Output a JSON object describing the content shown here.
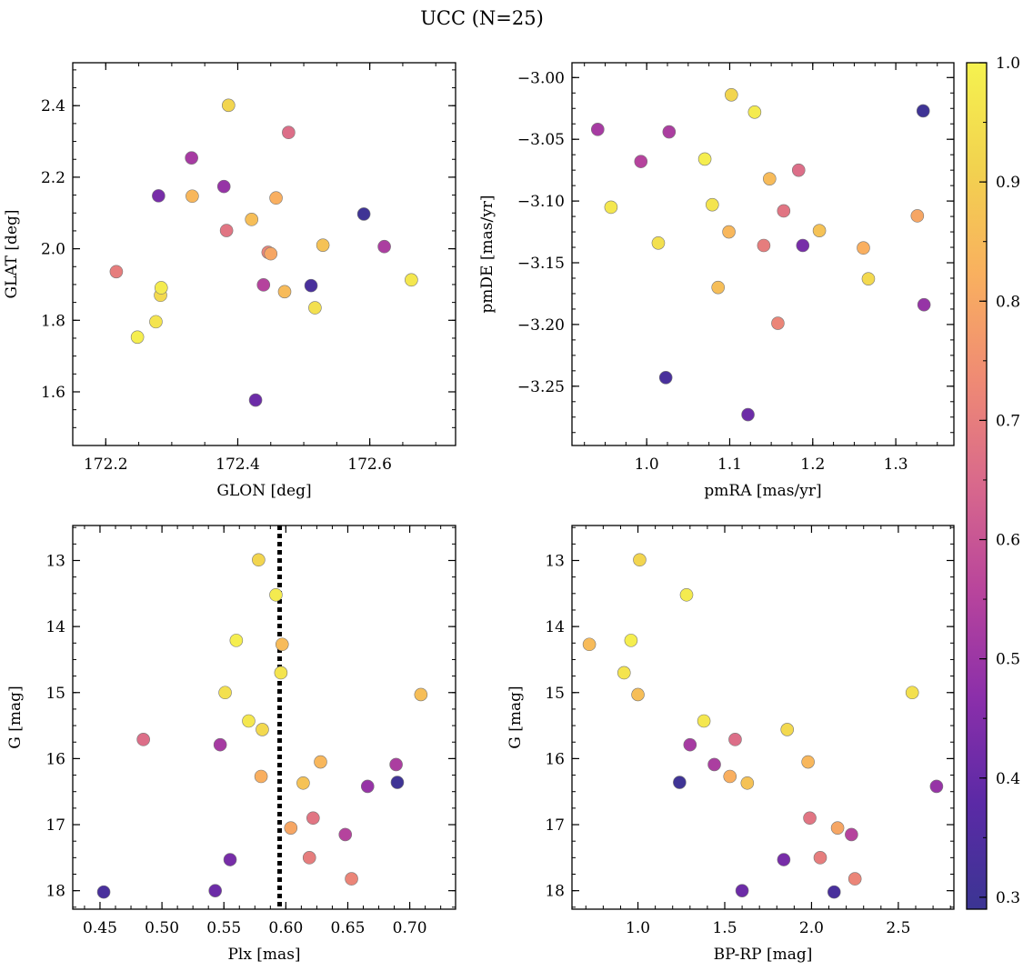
{
  "chart_data": {
    "type": "scatter",
    "title": "UCC (N=25)",
    "colorbar": {
      "colormap": "plasma",
      "min": 0.29,
      "max": 1.0,
      "ticks": [
        0.3,
        0.4,
        0.5,
        0.6,
        0.7,
        0.8,
        0.9,
        1.0
      ],
      "tick_labels": [
        "0.3",
        "0.4",
        "0.5",
        "0.6",
        "0.7",
        "0.8",
        "0.9",
        "1.0"
      ]
    },
    "colors": {
      "marker_edge": "#777777",
      "vline": "#000000",
      "colormap_stops": [
        "#3b3593",
        "#5b2aa6",
        "#8b2faa",
        "#b8449c",
        "#d8688c",
        "#ef8a74",
        "#f9b05f",
        "#f2d24f",
        "#f5f24f"
      ]
    },
    "panels": [
      {
        "xlabel": "GLON [deg]",
        "ylabel": "GLAT [deg]",
        "xlim": [
          172.15,
          172.73
        ],
        "ylim": [
          1.45,
          2.52
        ],
        "invert_y": false,
        "xticks": [
          172.2,
          172.4,
          172.6
        ],
        "xtick_labels": [
          "172.2",
          "172.4",
          "172.6"
        ],
        "yticks": [
          1.6,
          1.8,
          2.0,
          2.2,
          2.4
        ],
        "ytick_labels": [
          "1.6",
          "1.8",
          "2.0",
          "2.2",
          "2.4"
        ],
        "x_minor": 0.05,
        "y_minor": 0.05
      },
      {
        "xlabel": "pmRA [mas/yr]",
        "ylabel": "pmDE [mas/yr]",
        "xlim": [
          0.91,
          1.37
        ],
        "ylim": [
          -3.298,
          -2.988
        ],
        "invert_y": false,
        "xticks": [
          1.0,
          1.1,
          1.2,
          1.3
        ],
        "xtick_labels": [
          "1.0",
          "1.1",
          "1.2",
          "1.3"
        ],
        "yticks": [
          -3.25,
          -3.2,
          -3.15,
          -3.1,
          -3.05,
          -3.0
        ],
        "ytick_labels": [
          "−3.25",
          "−3.20",
          "−3.15",
          "−3.10",
          "−3.05",
          "−3.00"
        ],
        "x_minor": 0.025,
        "y_minor": 0.0125
      },
      {
        "xlabel": "Plx [mas]",
        "ylabel": "G [mag]",
        "xlim": [
          0.428,
          0.737
        ],
        "ylim": [
          12.47,
          18.28
        ],
        "invert_y": true,
        "xticks": [
          0.45,
          0.5,
          0.55,
          0.6,
          0.65,
          0.7
        ],
        "xtick_labels": [
          "0.45",
          "0.50",
          "0.55",
          "0.60",
          "0.65",
          "0.70"
        ],
        "yticks": [
          13,
          14,
          15,
          16,
          17,
          18
        ],
        "ytick_labels": [
          "13",
          "14",
          "15",
          "16",
          "17",
          "18"
        ],
        "x_minor": 0.0125,
        "y_minor": 0.25,
        "vline": 0.595
      },
      {
        "xlabel": "BP-RP [mag]",
        "ylabel": "G [mag]",
        "xlim": [
          0.62,
          2.82
        ],
        "ylim": [
          12.47,
          18.28
        ],
        "invert_y": true,
        "xticks": [
          1.0,
          1.5,
          2.0,
          2.5
        ],
        "xtick_labels": [
          "1.0",
          "1.5",
          "2.0",
          "2.5"
        ],
        "yticks": [
          13,
          14,
          15,
          16,
          17,
          18
        ],
        "ytick_labels": [
          "13",
          "14",
          "15",
          "16",
          "17",
          "18"
        ],
        "x_minor": 0.1,
        "y_minor": 0.25
      }
    ],
    "stars": [
      {
        "glon": 172.386,
        "glat": 2.401,
        "pmra": 1.102,
        "pmde": -3.014,
        "plx": 0.578,
        "g": 12.99,
        "bprp": 1.01,
        "p": 0.92
      },
      {
        "glon": 172.284,
        "glat": 1.891,
        "pmra": 1.13,
        "pmde": -3.028,
        "plx": 0.592,
        "g": 13.52,
        "bprp": 1.28,
        "p": 0.98
      },
      {
        "glon": 172.248,
        "glat": 1.753,
        "pmra": 1.07,
        "pmde": -3.066,
        "plx": 0.56,
        "g": 14.21,
        "bprp": 0.96,
        "p": 0.99
      },
      {
        "glon": 172.471,
        "glat": 1.88,
        "pmra": 1.148,
        "pmde": -3.082,
        "plx": 0.597,
        "g": 14.27,
        "bprp": 0.72,
        "p": 0.85
      },
      {
        "glon": 172.276,
        "glat": 1.796,
        "pmra": 1.079,
        "pmde": -3.103,
        "plx": 0.596,
        "g": 14.7,
        "bprp": 0.92,
        "p": 0.96
      },
      {
        "glon": 172.517,
        "glat": 1.835,
        "pmra": 1.014,
        "pmde": -3.134,
        "plx": 0.551,
        "g": 15.0,
        "bprp": 2.58,
        "p": 0.95
      },
      {
        "glon": 172.421,
        "glat": 2.082,
        "pmra": 1.086,
        "pmde": -3.17,
        "plx": 0.709,
        "g": 15.03,
        "bprp": 1.0,
        "p": 0.86
      },
      {
        "glon": 172.663,
        "glat": 1.913,
        "pmra": 0.957,
        "pmde": -3.105,
        "plx": 0.57,
        "g": 15.43,
        "bprp": 1.38,
        "p": 0.97
      },
      {
        "glon": 172.283,
        "glat": 1.87,
        "pmra": 1.267,
        "pmde": -3.163,
        "plx": 0.581,
        "g": 15.56,
        "bprp": 1.86,
        "p": 0.93
      },
      {
        "glon": 172.477,
        "glat": 2.325,
        "pmra": 1.183,
        "pmde": -3.075,
        "plx": 0.485,
        "g": 15.71,
        "bprp": 1.56,
        "p": 0.66
      },
      {
        "glon": 172.33,
        "glat": 2.254,
        "pmra": 0.941,
        "pmde": -3.042,
        "plx": 0.547,
        "g": 15.79,
        "bprp": 1.3,
        "p": 0.52
      },
      {
        "glon": 172.331,
        "glat": 2.147,
        "pmra": 1.099,
        "pmde": -3.125,
        "plx": 0.628,
        "g": 16.05,
        "bprp": 1.98,
        "p": 0.84
      },
      {
        "glon": 172.622,
        "glat": 2.006,
        "pmra": 1.027,
        "pmde": -3.044,
        "plx": 0.689,
        "g": 16.09,
        "bprp": 1.44,
        "p": 0.53
      },
      {
        "glon": 172.458,
        "glat": 2.142,
        "pmra": 1.261,
        "pmde": -3.138,
        "plx": 0.58,
        "g": 16.27,
        "bprp": 1.53,
        "p": 0.82
      },
      {
        "glon": 172.591,
        "glat": 2.097,
        "pmra": 1.333,
        "pmde": -3.027,
        "plx": 0.69,
        "g": 16.36,
        "bprp": 1.24,
        "p": 0.3
      },
      {
        "glon": 172.529,
        "glat": 2.01,
        "pmra": 1.208,
        "pmde": -3.124,
        "plx": 0.614,
        "g": 16.37,
        "bprp": 1.63,
        "p": 0.87
      },
      {
        "glon": 172.379,
        "glat": 2.174,
        "pmra": 1.334,
        "pmde": -3.184,
        "plx": 0.666,
        "g": 16.42,
        "bprp": 2.72,
        "p": 0.49
      },
      {
        "glon": 172.383,
        "glat": 2.051,
        "pmra": 1.165,
        "pmde": -3.108,
        "plx": 0.622,
        "g": 16.9,
        "bprp": 1.99,
        "p": 0.68
      },
      {
        "glon": 172.45,
        "glat": 1.986,
        "pmra": 1.326,
        "pmde": -3.112,
        "plx": 0.604,
        "g": 17.05,
        "bprp": 2.15,
        "p": 0.8
      },
      {
        "glon": 172.439,
        "glat": 1.899,
        "pmra": 0.993,
        "pmde": -3.068,
        "plx": 0.648,
        "g": 17.15,
        "bprp": 2.23,
        "p": 0.55
      },
      {
        "glon": 172.216,
        "glat": 1.936,
        "pmra": 1.141,
        "pmde": -3.136,
        "plx": 0.619,
        "g": 17.5,
        "bprp": 2.05,
        "p": 0.7
      },
      {
        "glon": 172.28,
        "glat": 2.148,
        "pmra": 1.188,
        "pmde": -3.136,
        "plx": 0.555,
        "g": 17.53,
        "bprp": 1.84,
        "p": 0.43
      },
      {
        "glon": 172.446,
        "glat": 1.99,
        "pmra": 1.158,
        "pmde": -3.199,
        "plx": 0.653,
        "g": 17.82,
        "bprp": 2.25,
        "p": 0.72
      },
      {
        "glon": 172.427,
        "glat": 1.577,
        "pmra": 1.122,
        "pmde": -3.273,
        "plx": 0.543,
        "g": 18.0,
        "bprp": 1.6,
        "p": 0.41
      },
      {
        "glon": 172.511,
        "glat": 1.897,
        "pmra": 1.023,
        "pmde": -3.243,
        "plx": 0.453,
        "g": 18.02,
        "bprp": 2.13,
        "p": 0.33
      }
    ]
  }
}
